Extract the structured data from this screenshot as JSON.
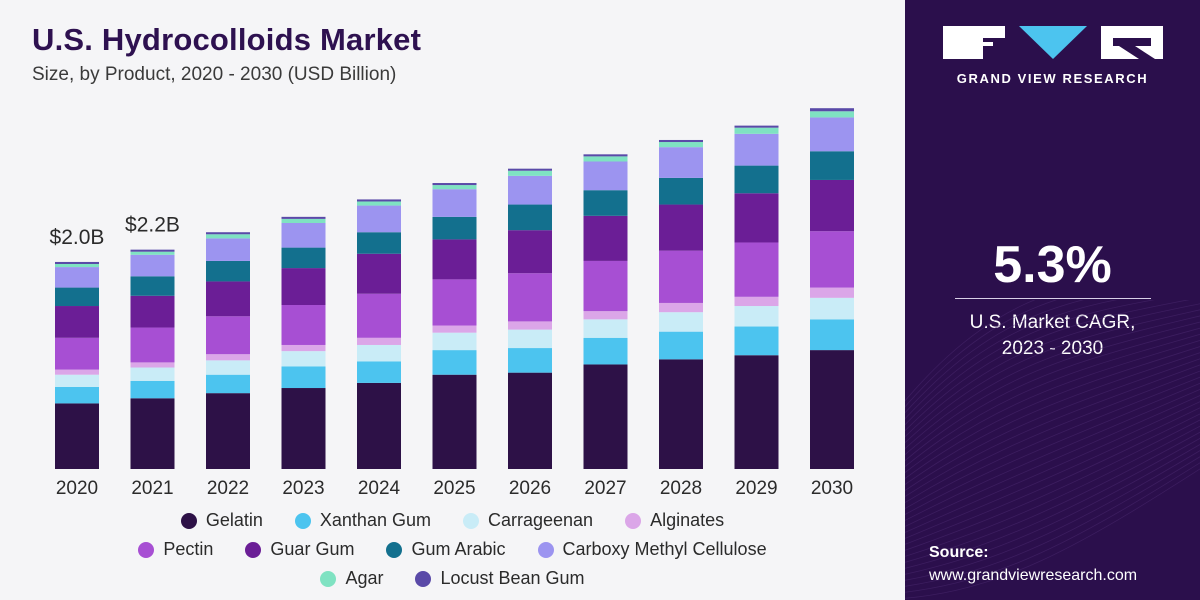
{
  "header": {
    "title": "U.S. Hydrocolloids Market",
    "subtitle": "Size, by Product, 2020 - 2030 (USD Billion)"
  },
  "sidebar": {
    "brand": "GRAND VIEW RESEARCH",
    "cagr_value": "5.3%",
    "cagr_label_line1": "U.S. Market CAGR,",
    "cagr_label_line2": "2023 - 2030",
    "source_label": "Source:",
    "source_url": "www.grandviewresearch.com",
    "background_color": "#2b0f4c"
  },
  "chart_data": {
    "type": "bar",
    "stacked": true,
    "title": "U.S. Hydrocolloids Market",
    "subtitle": "Size, by Product, 2020 - 2030 (USD Billion)",
    "xlabel": "",
    "ylabel": "",
    "grid": false,
    "legend_position": "bottom",
    "categories": [
      "2020",
      "2021",
      "2022",
      "2023",
      "2024",
      "2025",
      "2026",
      "2027",
      "2028",
      "2029",
      "2030"
    ],
    "annotations": [
      {
        "category": "2020",
        "text": "$2.0B"
      },
      {
        "category": "2021",
        "text": "$2.2B"
      }
    ],
    "series": [
      {
        "name": "Gelatin",
        "color": "#2d1147",
        "values": [
          0.64,
          0.69,
          0.74,
          0.79,
          0.84,
          0.92,
          0.94,
          1.02,
          1.07,
          1.11,
          1.16
        ]
      },
      {
        "name": "Xanthan Gum",
        "color": "#4cc4ef",
        "values": [
          0.16,
          0.17,
          0.18,
          0.21,
          0.21,
          0.24,
          0.24,
          0.26,
          0.27,
          0.28,
          0.3
        ]
      },
      {
        "name": "Carrageenan",
        "color": "#c9ecf7",
        "values": [
          0.12,
          0.13,
          0.14,
          0.15,
          0.16,
          0.17,
          0.18,
          0.18,
          0.19,
          0.2,
          0.21
        ]
      },
      {
        "name": "Alginates",
        "color": "#dba6e8",
        "values": [
          0.05,
          0.05,
          0.06,
          0.06,
          0.07,
          0.07,
          0.08,
          0.08,
          0.09,
          0.09,
          0.1
        ]
      },
      {
        "name": "Pectin",
        "color": "#a74fd3",
        "values": [
          0.31,
          0.34,
          0.37,
          0.39,
          0.43,
          0.45,
          0.47,
          0.49,
          0.51,
          0.53,
          0.55
        ]
      },
      {
        "name": "Guar Gum",
        "color": "#6b1e96",
        "values": [
          0.31,
          0.31,
          0.34,
          0.36,
          0.39,
          0.39,
          0.42,
          0.44,
          0.45,
          0.48,
          0.5
        ]
      },
      {
        "name": "Gum Arabic",
        "color": "#13708e",
        "values": [
          0.18,
          0.19,
          0.2,
          0.2,
          0.21,
          0.22,
          0.25,
          0.25,
          0.26,
          0.27,
          0.28
        ]
      },
      {
        "name": "Carboxy Methyl Cellulose",
        "color": "#9c94f0",
        "values": [
          0.2,
          0.21,
          0.22,
          0.24,
          0.26,
          0.27,
          0.28,
          0.28,
          0.3,
          0.31,
          0.33
        ]
      },
      {
        "name": "Agar",
        "color": "#7fe2c2",
        "values": [
          0.03,
          0.03,
          0.04,
          0.04,
          0.04,
          0.04,
          0.05,
          0.05,
          0.05,
          0.06,
          0.06
        ]
      },
      {
        "name": "Locust Bean Gum",
        "color": "#5a4aa8",
        "values": [
          0.02,
          0.02,
          0.02,
          0.02,
          0.02,
          0.02,
          0.02,
          0.02,
          0.02,
          0.02,
          0.03
        ]
      }
    ]
  }
}
